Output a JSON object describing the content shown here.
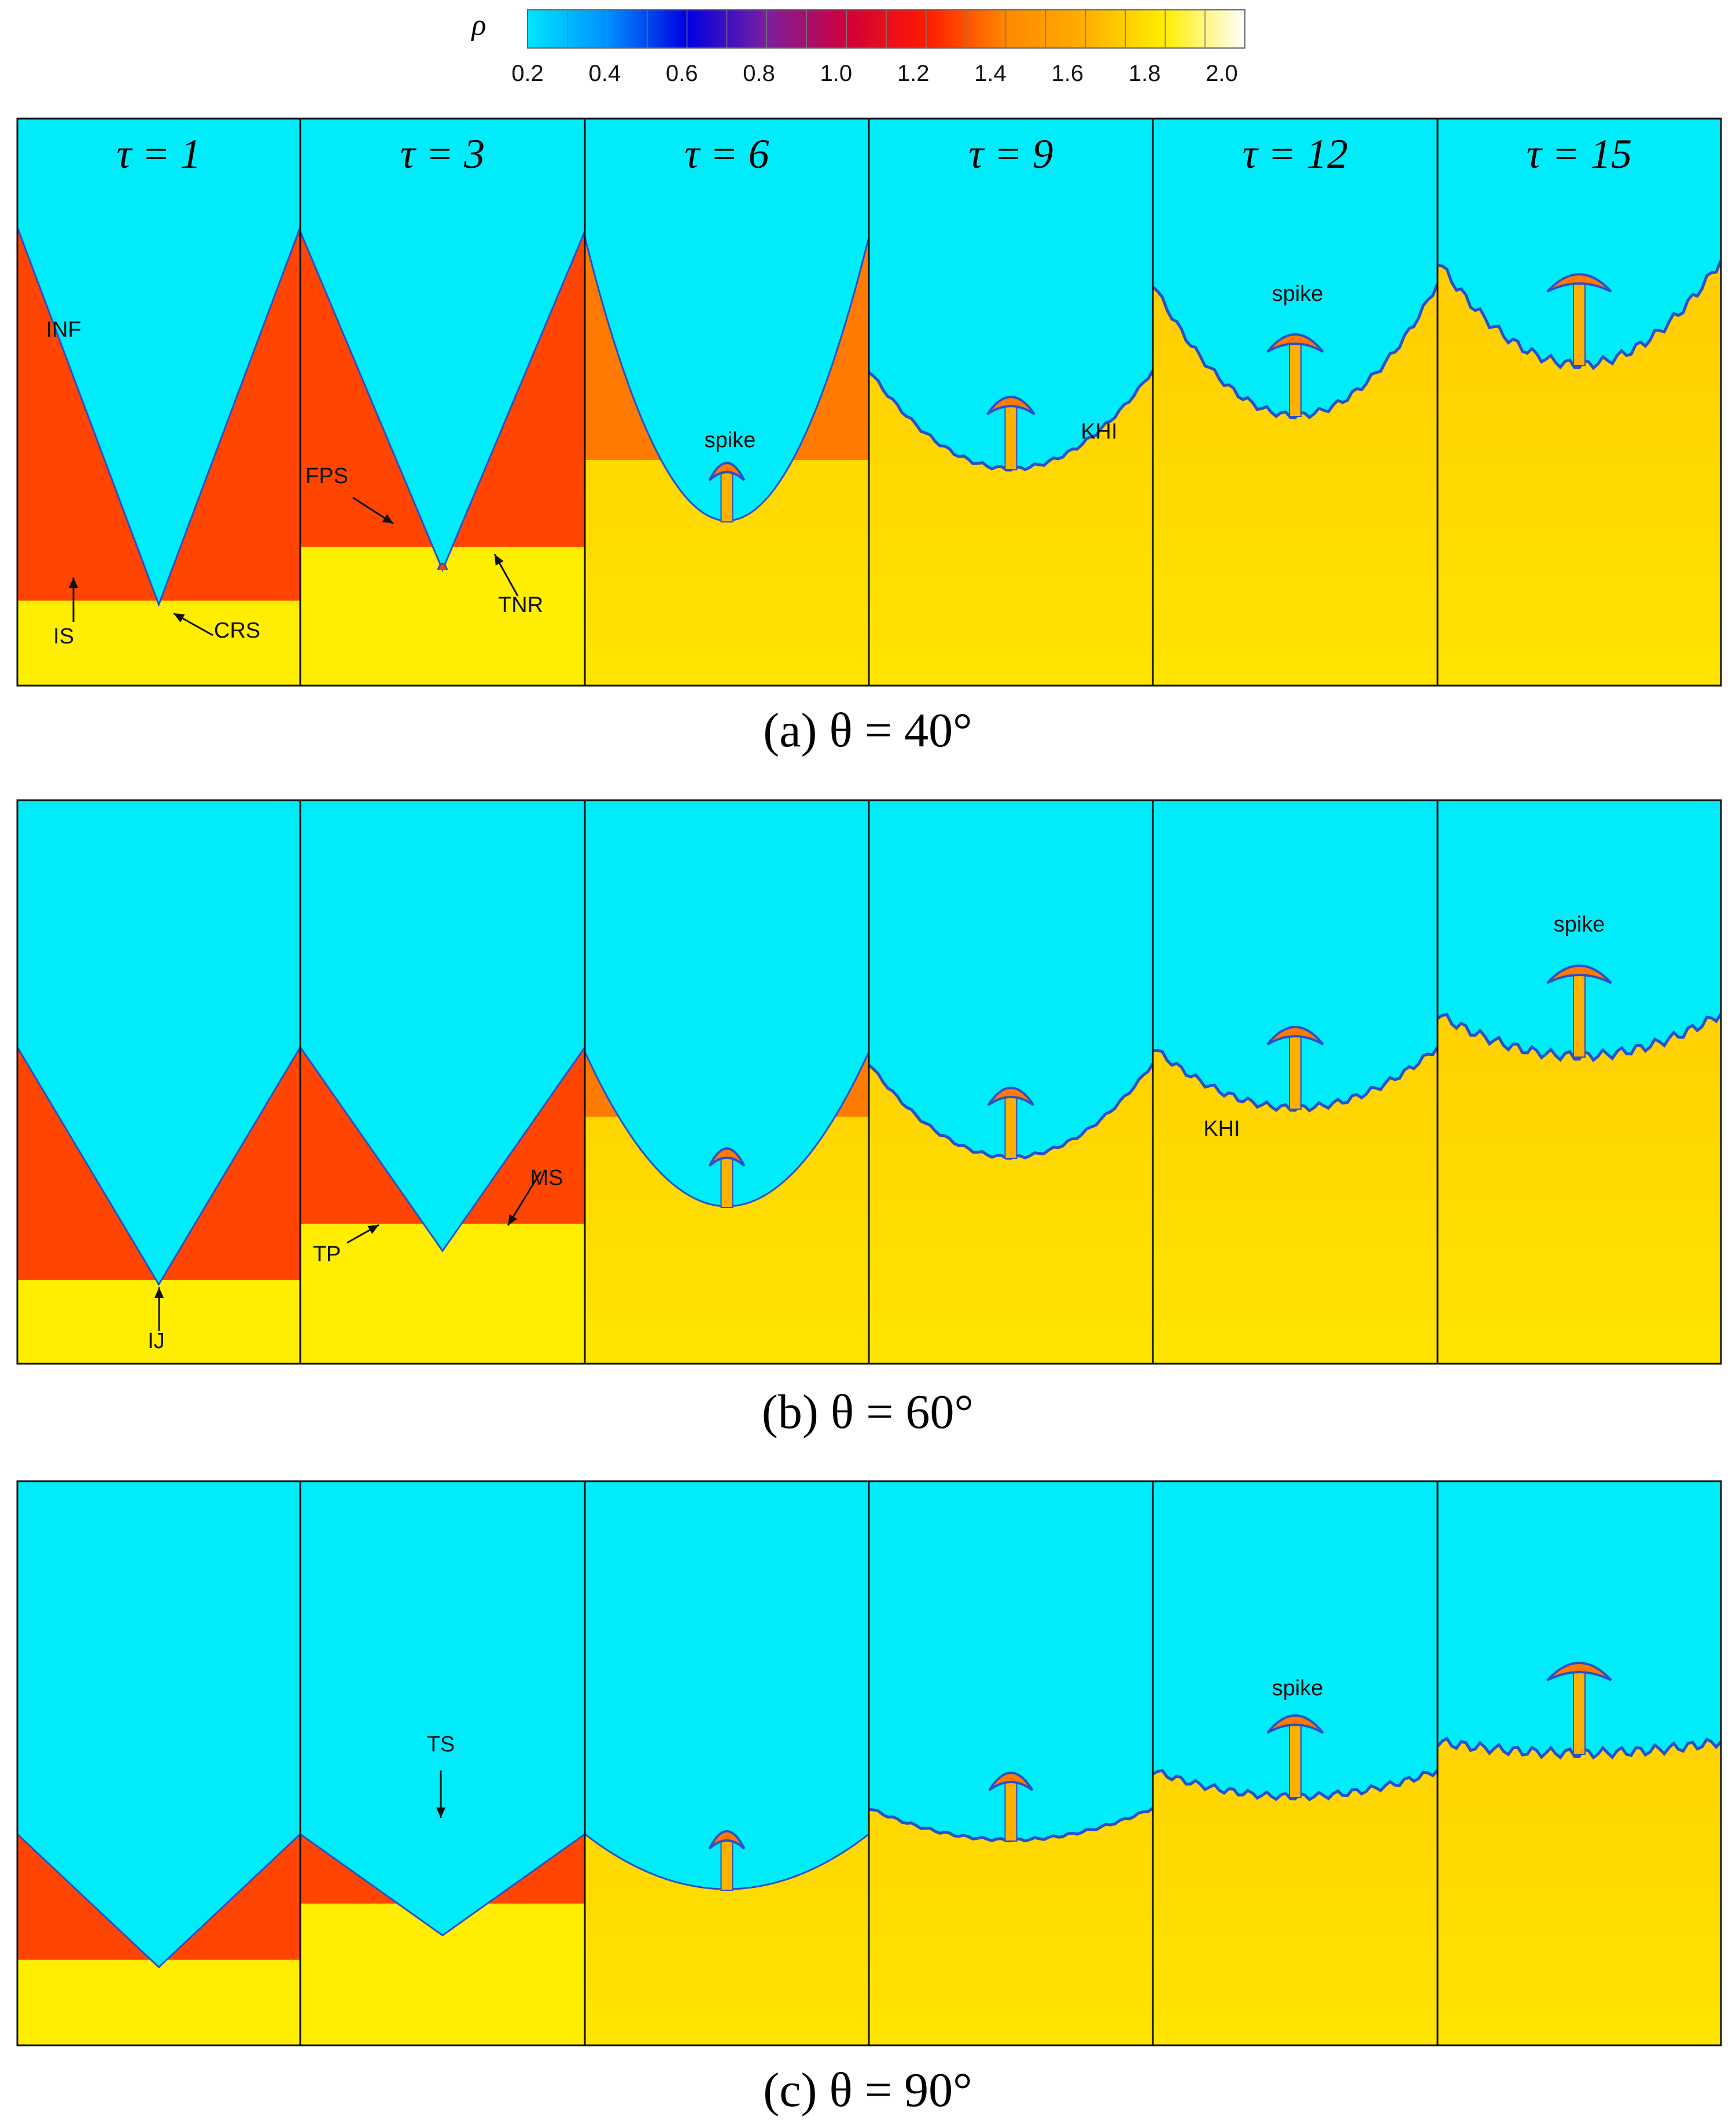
{
  "colorbar": {
    "symbol": "ρ",
    "ticks": [
      "0.2",
      "0.4",
      "0.6",
      "0.8",
      "1.0",
      "1.2",
      "1.4",
      "1.6",
      "1.8",
      "2.0"
    ],
    "stops": [
      {
        "value": 0.2,
        "color": "#00e5ff"
      },
      {
        "value": 0.4,
        "color": "#0090ff"
      },
      {
        "value": 0.6,
        "color": "#0000e0"
      },
      {
        "value": 0.8,
        "color": "#7a1fa0"
      },
      {
        "value": 1.0,
        "color": "#d0003a"
      },
      {
        "value": 1.2,
        "color": "#ff1a00"
      },
      {
        "value": 1.4,
        "color": "#ff8800"
      },
      {
        "value": 1.6,
        "color": "#ffb000"
      },
      {
        "value": 1.8,
        "color": "#ffee00"
      },
      {
        "value": 2.0,
        "color": "#ffffff"
      }
    ]
  },
  "time_labels": [
    "τ = 1",
    "τ = 3",
    "τ = 6",
    "τ = 9",
    "τ = 12",
    "τ = 15"
  ],
  "rows": [
    {
      "caption": "(a) θ = 40°",
      "annotations": [
        {
          "text": "INF",
          "panel": 0
        },
        {
          "text": "IS",
          "panel": 0
        },
        {
          "text": "CRS",
          "panel": 0
        },
        {
          "text": "FPS",
          "panel": 1
        },
        {
          "text": "TNR",
          "panel": 1
        },
        {
          "text": "spike",
          "panel": 2
        },
        {
          "text": "KHI",
          "panel": 3
        },
        {
          "text": "spike",
          "panel": 4
        }
      ]
    },
    {
      "caption": "(b) θ = 60°",
      "annotations": [
        {
          "text": "IJ",
          "panel": 0
        },
        {
          "text": "TP",
          "panel": 1
        },
        {
          "text": "MS",
          "panel": 1
        },
        {
          "text": "KHI",
          "panel": 4
        },
        {
          "text": "spike",
          "panel": 5
        }
      ]
    },
    {
      "caption": "(c) θ = 90°",
      "annotations": [
        {
          "text": "TS",
          "panel": 1
        },
        {
          "text": "spike",
          "panel": 4
        }
      ]
    }
  ],
  "colors": {
    "light_gas": "#00ecfa",
    "shocked_light": "#ff4500",
    "heavy": "#ffee00",
    "shocked_heavy": "#ffc000",
    "interface": "#2a4fc8"
  }
}
